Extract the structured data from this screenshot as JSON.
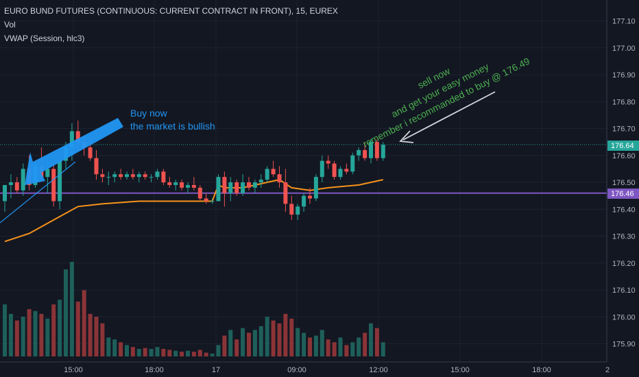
{
  "header": {
    "symbol": "EURO BUND FUTURES (CONTINUOUS: CURRENT CONTRACT IN FRONT), 15, EUREX",
    "vol_label": "Vol",
    "vwap_label": "VWAP (Session, hlc3)"
  },
  "colors": {
    "background": "#131722",
    "up": "#26a69a",
    "down": "#ef5350",
    "vwap": "#f7931a",
    "level": "#7e57c2",
    "price_line": "#26a69a",
    "blue": "#2196f3",
    "green": "#4caf50"
  },
  "chart_data": {
    "type": "candlestick",
    "y_ticks": [
      "177.10",
      "177.00",
      "176.90",
      "176.80",
      "176.70",
      "176.60",
      "176.50",
      "176.40",
      "176.30",
      "176.20",
      "176.10",
      "176.00",
      "175.90"
    ],
    "x_ticks": [
      "15:00",
      "18:00",
      "17",
      "09:00",
      "12:00",
      "15:00",
      "18:00",
      "2"
    ],
    "ylim": [
      175.87,
      177.13
    ],
    "current_price": "176.64",
    "level_price": "176.46",
    "candles": [
      {
        "o": 176.43,
        "h": 176.49,
        "l": 176.39,
        "c": 176.49,
        "v": 55
      },
      {
        "o": 176.49,
        "h": 176.53,
        "l": 176.44,
        "c": 176.5,
        "v": 45
      },
      {
        "o": 176.5,
        "h": 176.52,
        "l": 176.46,
        "c": 176.47,
        "v": 38
      },
      {
        "o": 176.47,
        "h": 176.57,
        "l": 176.45,
        "c": 176.55,
        "v": 42
      },
      {
        "o": 176.55,
        "h": 176.6,
        "l": 176.47,
        "c": 176.49,
        "v": 50
      },
      {
        "o": 176.49,
        "h": 176.57,
        "l": 176.48,
        "c": 176.56,
        "v": 48
      },
      {
        "o": 176.56,
        "h": 176.63,
        "l": 176.51,
        "c": 176.52,
        "v": 45
      },
      {
        "o": 176.52,
        "h": 176.58,
        "l": 176.46,
        "c": 176.55,
        "v": 40
      },
      {
        "o": 176.55,
        "h": 176.57,
        "l": 176.41,
        "c": 176.43,
        "v": 55
      },
      {
        "o": 176.43,
        "h": 176.6,
        "l": 176.4,
        "c": 176.58,
        "v": 60
      },
      {
        "o": 176.58,
        "h": 176.65,
        "l": 176.55,
        "c": 176.63,
        "v": 92
      },
      {
        "o": 176.63,
        "h": 176.72,
        "l": 176.58,
        "c": 176.69,
        "v": 100
      },
      {
        "o": 176.69,
        "h": 176.73,
        "l": 176.62,
        "c": 176.65,
        "v": 58
      },
      {
        "o": 176.65,
        "h": 176.67,
        "l": 176.6,
        "c": 176.63,
        "v": 70
      },
      {
        "o": 176.63,
        "h": 176.66,
        "l": 176.58,
        "c": 176.59,
        "v": 45
      },
      {
        "o": 176.59,
        "h": 176.62,
        "l": 176.51,
        "c": 176.53,
        "v": 42
      },
      {
        "o": 176.53,
        "h": 176.55,
        "l": 176.5,
        "c": 176.52,
        "v": 35
      },
      {
        "o": 176.52,
        "h": 176.54,
        "l": 176.49,
        "c": 176.52,
        "v": 20
      },
      {
        "o": 176.52,
        "h": 176.54,
        "l": 176.5,
        "c": 176.53,
        "v": 18
      },
      {
        "o": 176.53,
        "h": 176.55,
        "l": 176.51,
        "c": 176.52,
        "v": 15
      },
      {
        "o": 176.52,
        "h": 176.54,
        "l": 176.51,
        "c": 176.53,
        "v": 12
      },
      {
        "o": 176.53,
        "h": 176.55,
        "l": 176.51,
        "c": 176.52,
        "v": 10
      },
      {
        "o": 176.52,
        "h": 176.54,
        "l": 176.5,
        "c": 176.53,
        "v": 8
      },
      {
        "o": 176.53,
        "h": 176.54,
        "l": 176.51,
        "c": 176.52,
        "v": 9
      },
      {
        "o": 176.52,
        "h": 176.53,
        "l": 176.5,
        "c": 176.52,
        "v": 8
      },
      {
        "o": 176.52,
        "h": 176.55,
        "l": 176.51,
        "c": 176.54,
        "v": 10
      },
      {
        "o": 176.54,
        "h": 176.55,
        "l": 176.49,
        "c": 176.5,
        "v": 8
      },
      {
        "o": 176.5,
        "h": 176.52,
        "l": 176.48,
        "c": 176.49,
        "v": 7
      },
      {
        "o": 176.49,
        "h": 176.51,
        "l": 176.47,
        "c": 176.5,
        "v": 6
      },
      {
        "o": 176.5,
        "h": 176.51,
        "l": 176.47,
        "c": 176.48,
        "v": 5
      },
      {
        "o": 176.48,
        "h": 176.5,
        "l": 176.46,
        "c": 176.49,
        "v": 6
      },
      {
        "o": 176.49,
        "h": 176.52,
        "l": 176.47,
        "c": 176.48,
        "v": 5
      },
      {
        "o": 176.48,
        "h": 176.49,
        "l": 176.43,
        "c": 176.44,
        "v": 7
      },
      {
        "o": 176.44,
        "h": 176.46,
        "l": 176.42,
        "c": 176.43,
        "v": 4
      },
      {
        "o": 176.43,
        "h": 176.44,
        "l": 176.42,
        "c": 176.43,
        "v": 3
      },
      {
        "o": 176.43,
        "h": 176.53,
        "l": 176.43,
        "c": 176.52,
        "v": 12
      },
      {
        "o": 176.52,
        "h": 176.54,
        "l": 176.41,
        "c": 176.46,
        "v": 22
      },
      {
        "o": 176.46,
        "h": 176.52,
        "l": 176.43,
        "c": 176.5,
        "v": 28
      },
      {
        "o": 176.5,
        "h": 176.51,
        "l": 176.45,
        "c": 176.46,
        "v": 18
      },
      {
        "o": 176.46,
        "h": 176.53,
        "l": 176.45,
        "c": 176.5,
        "v": 30
      },
      {
        "o": 176.5,
        "h": 176.52,
        "l": 176.47,
        "c": 176.48,
        "v": 25
      },
      {
        "o": 176.48,
        "h": 176.51,
        "l": 176.46,
        "c": 176.5,
        "v": 28
      },
      {
        "o": 176.5,
        "h": 176.53,
        "l": 176.48,
        "c": 176.51,
        "v": 32
      },
      {
        "o": 176.51,
        "h": 176.56,
        "l": 176.5,
        "c": 176.55,
        "v": 42
      },
      {
        "o": 176.55,
        "h": 176.58,
        "l": 176.52,
        "c": 176.53,
        "v": 38
      },
      {
        "o": 176.53,
        "h": 176.56,
        "l": 176.48,
        "c": 176.5,
        "v": 35
      },
      {
        "o": 176.5,
        "h": 176.55,
        "l": 176.39,
        "c": 176.42,
        "v": 45
      },
      {
        "o": 176.42,
        "h": 176.45,
        "l": 176.36,
        "c": 176.38,
        "v": 40
      },
      {
        "o": 176.38,
        "h": 176.42,
        "l": 176.36,
        "c": 176.41,
        "v": 30
      },
      {
        "o": 176.41,
        "h": 176.46,
        "l": 176.39,
        "c": 176.45,
        "v": 25
      },
      {
        "o": 176.45,
        "h": 176.48,
        "l": 176.42,
        "c": 176.44,
        "v": 20
      },
      {
        "o": 176.44,
        "h": 176.53,
        "l": 176.43,
        "c": 176.52,
        "v": 22
      },
      {
        "o": 176.52,
        "h": 176.6,
        "l": 176.5,
        "c": 176.58,
        "v": 28
      },
      {
        "o": 176.58,
        "h": 176.6,
        "l": 176.55,
        "c": 176.57,
        "v": 18
      },
      {
        "o": 176.57,
        "h": 176.58,
        "l": 176.51,
        "c": 176.52,
        "v": 15
      },
      {
        "o": 176.52,
        "h": 176.56,
        "l": 176.51,
        "c": 176.55,
        "v": 20
      },
      {
        "o": 176.55,
        "h": 176.57,
        "l": 176.53,
        "c": 176.54,
        "v": 12
      },
      {
        "o": 176.54,
        "h": 176.61,
        "l": 176.53,
        "c": 176.6,
        "v": 15
      },
      {
        "o": 176.6,
        "h": 176.63,
        "l": 176.58,
        "c": 176.62,
        "v": 20
      },
      {
        "o": 176.62,
        "h": 176.65,
        "l": 176.58,
        "c": 176.59,
        "v": 25
      },
      {
        "o": 176.59,
        "h": 176.66,
        "l": 176.57,
        "c": 176.65,
        "v": 35
      },
      {
        "o": 176.65,
        "h": 176.66,
        "l": 176.58,
        "c": 176.59,
        "v": 30
      },
      {
        "o": 176.59,
        "h": 176.65,
        "l": 176.58,
        "c": 176.64,
        "v": 15
      }
    ],
    "vwap": [
      {
        "i": 0,
        "p": 176.28
      },
      {
        "i": 4,
        "p": 176.31
      },
      {
        "i": 8,
        "p": 176.36
      },
      {
        "i": 12,
        "p": 176.41
      },
      {
        "i": 16,
        "p": 176.42
      },
      {
        "i": 22,
        "p": 176.43
      },
      {
        "i": 30,
        "p": 176.43
      },
      {
        "i": 34,
        "p": 176.43
      },
      {
        "i": 35,
        "p": 176.49
      },
      {
        "i": 36,
        "p": 176.48
      },
      {
        "i": 39,
        "p": 176.48
      },
      {
        "i": 43,
        "p": 176.5
      },
      {
        "i": 45,
        "p": 176.51
      },
      {
        "i": 47,
        "p": 176.48
      },
      {
        "i": 50,
        "p": 176.47
      },
      {
        "i": 53,
        "p": 176.48
      },
      {
        "i": 58,
        "p": 176.49
      },
      {
        "i": 62,
        "p": 176.51
      }
    ]
  },
  "annotations": {
    "buy_line1": "Buy now",
    "buy_line2": "the market is bullish",
    "sell_line1": "sell now",
    "sell_line2": "and get your easy money",
    "sell_line3": "remember i recommanded to buy @ 176.49"
  }
}
